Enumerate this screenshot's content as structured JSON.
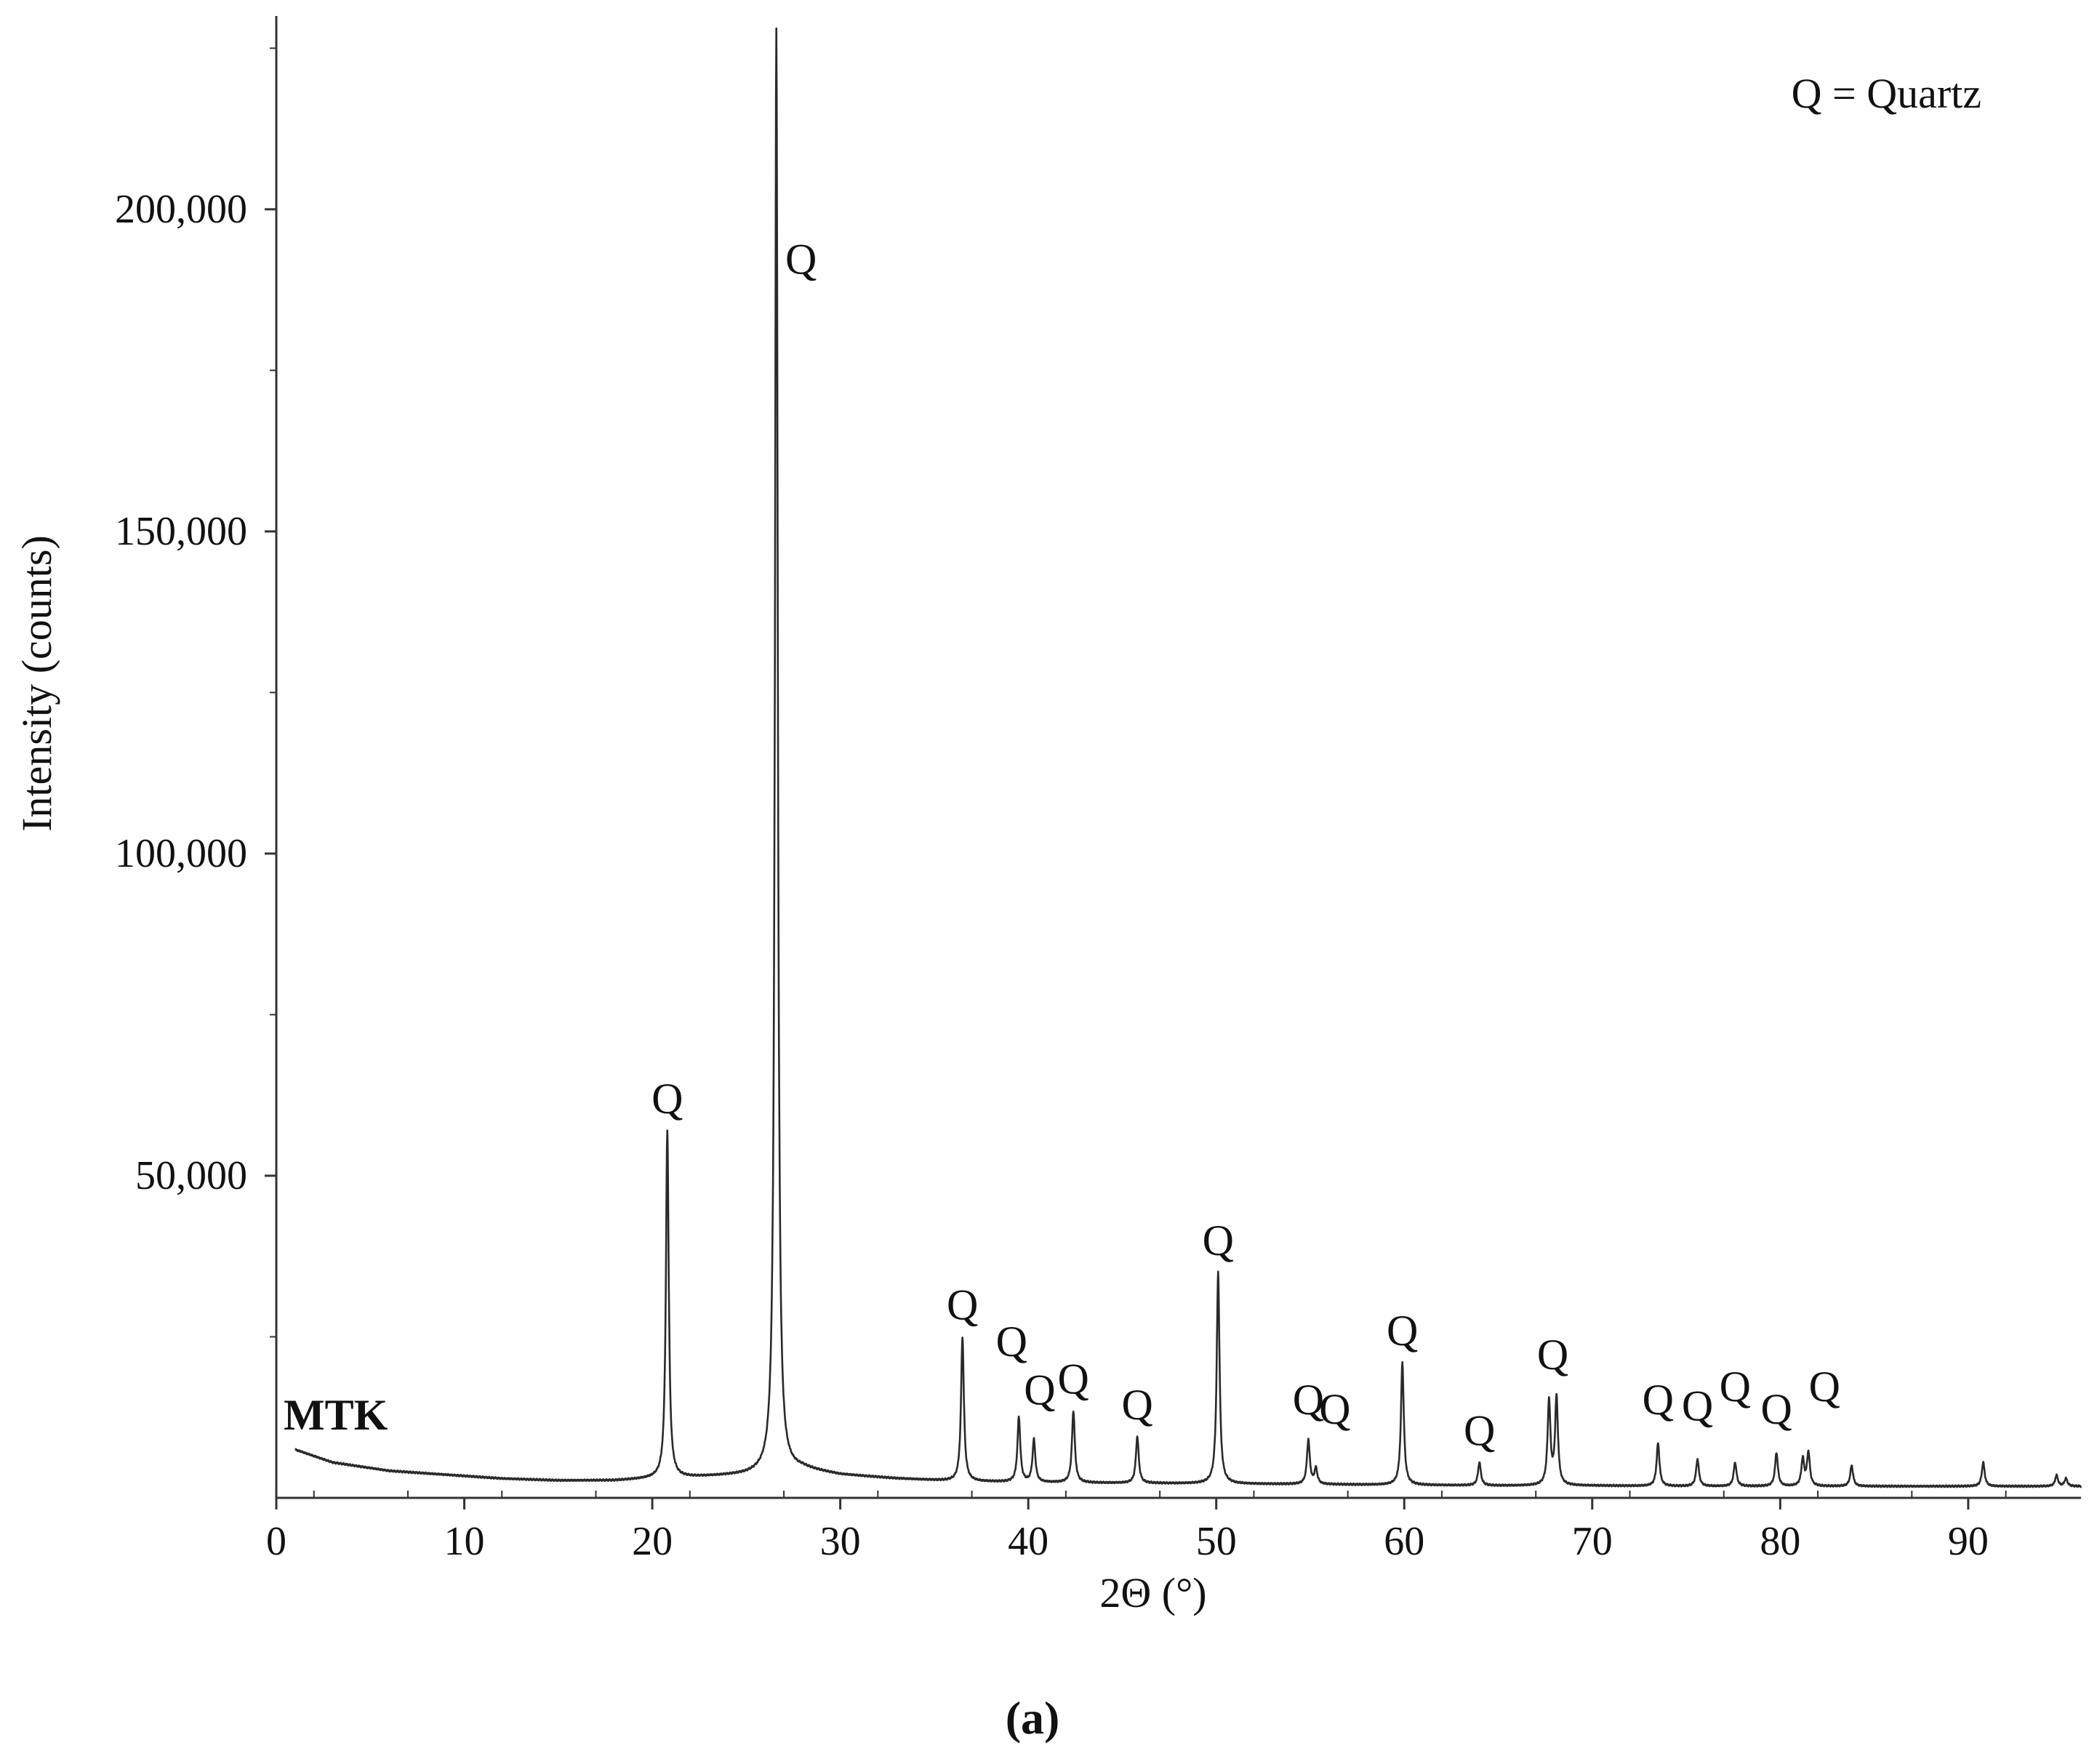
{
  "chart_data": {
    "type": "line",
    "xlabel": "2Θ (°)",
    "ylabel": "Intensity (counts)",
    "xlim": [
      0,
      96
    ],
    "ylim": [
      0,
      230000
    ],
    "x_ticks": [
      0,
      10,
      20,
      30,
      40,
      50,
      60,
      70,
      80,
      90
    ],
    "x_tick_labels": [
      "0",
      "10",
      "20",
      "30",
      "40",
      "50",
      "60",
      "70",
      "80",
      "90"
    ],
    "y_ticks": [
      50000,
      100000,
      150000,
      200000
    ],
    "y_tick_labels": [
      "50,000",
      "100,000",
      "150,000",
      "200,000"
    ],
    "grid": false,
    "legend_text": "Q = Quartz",
    "legend_position": "top-right",
    "sample_label": "MTK",
    "panel_label": "(a)",
    "series": [
      {
        "name": "MTK",
        "color": "#2a2a2a",
        "baseline": [
          [
            1,
            7500
          ],
          [
            3,
            5500
          ],
          [
            6,
            4200
          ],
          [
            9,
            3600
          ],
          [
            12,
            3000
          ],
          [
            15,
            2700
          ],
          [
            18,
            2700
          ],
          [
            20,
            3000
          ],
          [
            22,
            3200
          ],
          [
            25,
            3600
          ],
          [
            28,
            4500
          ],
          [
            30,
            3600
          ],
          [
            33,
            3000
          ],
          [
            36,
            2600
          ],
          [
            40,
            2400
          ],
          [
            45,
            2300
          ],
          [
            50,
            2200
          ],
          [
            55,
            2100
          ],
          [
            60,
            2000
          ],
          [
            65,
            1900
          ],
          [
            70,
            1900
          ],
          [
            75,
            1800
          ],
          [
            80,
            1800
          ],
          [
            85,
            1800
          ],
          [
            90,
            1800
          ],
          [
            96,
            1800
          ]
        ],
        "peaks": [
          {
            "x": 20.8,
            "y": 57000,
            "label": "Q"
          },
          {
            "x": 26.6,
            "y": 228000,
            "label": "Q"
          },
          {
            "x": 36.5,
            "y": 25000,
            "label": "Q"
          },
          {
            "x": 39.5,
            "y": 12500,
            "label": "Q"
          },
          {
            "x": 40.3,
            "y": 9000,
            "label": "Q"
          },
          {
            "x": 42.4,
            "y": 13500,
            "label": "Q"
          },
          {
            "x": 45.8,
            "y": 9500,
            "label": "Q"
          },
          {
            "x": 50.1,
            "y": 35000,
            "label": "Q"
          },
          {
            "x": 54.9,
            "y": 9000,
            "label": "Q"
          },
          {
            "x": 55.3,
            "y": 4500,
            "label": "Q"
          },
          {
            "x": 59.9,
            "y": 21000,
            "label": "Q"
          },
          {
            "x": 64.0,
            "y": 5500,
            "label": "Q"
          },
          {
            "x": 67.7,
            "y": 15000,
            "label": "Q"
          },
          {
            "x": 68.1,
            "y": 15500,
            "label": "Q"
          },
          {
            "x": 73.5,
            "y": 8500,
            "label": "Q"
          },
          {
            "x": 75.6,
            "y": 6000,
            "label": "Q"
          },
          {
            "x": 77.6,
            "y": 5500,
            "label": "Q"
          },
          {
            "x": 79.8,
            "y": 7000,
            "label": "Q"
          },
          {
            "x": 81.2,
            "y": 6000,
            "label": "Q"
          },
          {
            "x": 81.5,
            "y": 7000,
            "label": ""
          },
          {
            "x": 83.8,
            "y": 5000,
            "label": ""
          },
          {
            "x": 90.8,
            "y": 5500,
            "label": ""
          },
          {
            "x": 94.7,
            "y": 3500,
            "label": ""
          },
          {
            "x": 95.2,
            "y": 3000,
            "label": ""
          }
        ]
      }
    ]
  }
}
